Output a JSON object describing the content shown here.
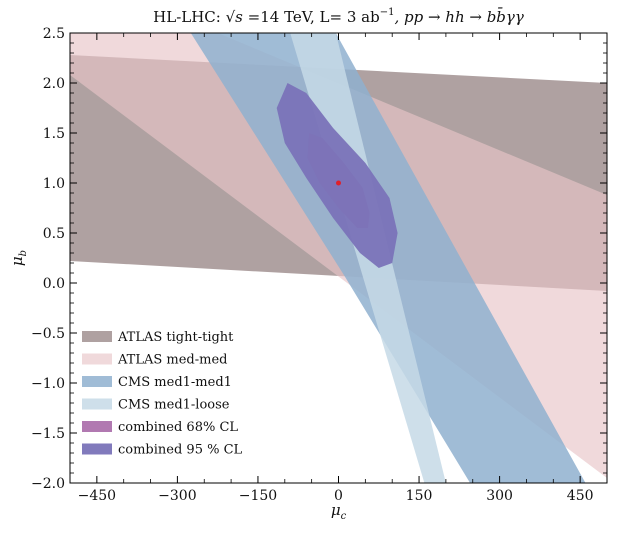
{
  "chart_data": {
    "type": "contour",
    "title_parts": {
      "prefix": "HL-LHC: ",
      "sqrt_s": "√s",
      "energy": " =14 TeV, L= 3 ab",
      "lumi_exp": "−1",
      "process": ", pp → hh → bb̄γγ"
    },
    "xlabel": "μ",
    "xlabel_sub": "c",
    "ylabel": "μ",
    "ylabel_sub": "b",
    "xlim": [
      -500,
      500
    ],
    "ylim": [
      -2.0,
      2.5
    ],
    "xticks": [
      -450,
      -300,
      -150,
      0,
      150,
      300,
      450
    ],
    "xtick_labels": [
      "−450",
      "−300",
      "−150",
      "0",
      "150",
      "300",
      "450"
    ],
    "yticks": [
      -2.0,
      -1.5,
      -1.0,
      -0.5,
      0.0,
      0.5,
      1.0,
      1.5,
      2.0,
      2.5
    ],
    "ytick_labels": [
      "−2.0",
      "−1.5",
      "−1.0",
      "−0.5",
      "0.0",
      "0.5",
      "1.0",
      "1.5",
      "2.0",
      "2.5"
    ],
    "legend_position": "lower-left",
    "series": [
      {
        "name": "ATLAS tight-tight",
        "color": "#9b8a8a",
        "opacity": 0.8,
        "polygon": [
          [
            -500,
            2.28
          ],
          [
            500,
            2.0
          ],
          [
            500,
            -0.08
          ],
          [
            -500,
            0.22
          ]
        ]
      },
      {
        "name": "ATLAS med-med",
        "color": "#e8c4c8",
        "opacity": 0.65,
        "polygon": [
          [
            -500,
            2.5
          ],
          [
            -225,
            2.5
          ],
          [
            500,
            0.88
          ],
          [
            500,
            -1.95
          ],
          [
            -500,
            2.08
          ]
        ]
      },
      {
        "name": "CMS med1-med1",
        "color": "#8fb0cf",
        "opacity": 0.85,
        "polygon": [
          [
            -275,
            2.5
          ],
          [
            -5,
            2.5
          ],
          [
            460,
            -2.0
          ],
          [
            245,
            -2.0
          ],
          [
            10,
            0.08
          ]
        ]
      },
      {
        "name": "CMS med1-loose",
        "color": "#c6d9e6",
        "opacity": 0.85,
        "polygon": [
          [
            -90,
            2.5
          ],
          [
            -5,
            2.5
          ],
          [
            200,
            -2.0
          ],
          [
            160,
            -2.0
          ]
        ]
      },
      {
        "name": "combined 68% CL",
        "color": "#a96aa8",
        "opacity": 0.9,
        "polygon": [
          [
            -55,
            1.5
          ],
          [
            -30,
            1.45
          ],
          [
            10,
            1.2
          ],
          [
            45,
            0.95
          ],
          [
            58,
            0.7
          ],
          [
            55,
            0.55
          ],
          [
            35,
            0.55
          ],
          [
            0,
            0.75
          ],
          [
            -35,
            1.0
          ],
          [
            -58,
            1.25
          ]
        ]
      },
      {
        "name": "combined 95 % CL",
        "color": "#7a73b8",
        "opacity": 0.95,
        "polygon": [
          [
            -95,
            2.0
          ],
          [
            -60,
            1.9
          ],
          [
            -10,
            1.55
          ],
          [
            50,
            1.2
          ],
          [
            95,
            0.85
          ],
          [
            110,
            0.5
          ],
          [
            100,
            0.2
          ],
          [
            75,
            0.15
          ],
          [
            40,
            0.3
          ],
          [
            -10,
            0.65
          ],
          [
            -60,
            1.05
          ],
          [
            -100,
            1.4
          ],
          [
            -115,
            1.75
          ]
        ]
      }
    ],
    "marker": {
      "x": 0,
      "y": 1.0,
      "color": "#e0202a"
    }
  }
}
